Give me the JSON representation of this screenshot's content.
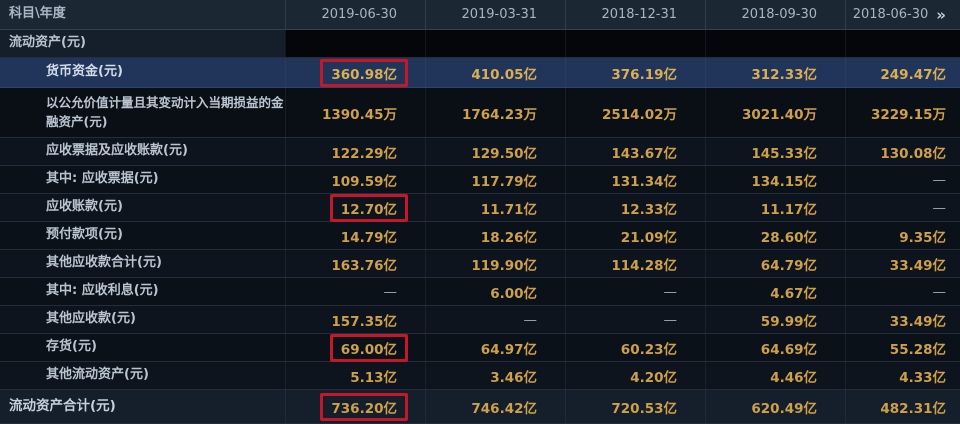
{
  "table": {
    "header": {
      "subject_label": "科目\\年度",
      "columns": [
        "2019-06-30",
        "2019-03-31",
        "2018-12-31",
        "2018-09-30",
        "2018-06-30"
      ],
      "more_icon": "»"
    },
    "colors": {
      "value_gold": "#cfa04a",
      "box_red": "#c2182a",
      "highlight_row_blue": "#21355a",
      "header_bg": "#1c2734"
    },
    "rows": [
      {
        "label": "流动资产(元)",
        "indent": 0,
        "type": "section",
        "values": [
          "",
          "",
          "",
          "",
          ""
        ],
        "boxed": []
      },
      {
        "label": "货币资金(元)",
        "indent": 1,
        "type": "highlight",
        "values": [
          "360.98亿",
          "410.05亿",
          "376.19亿",
          "312.33亿",
          "249.47亿"
        ],
        "boxed": [
          0
        ]
      },
      {
        "label": "以公允价值计量且其变动计入当期损益的金融资产(元)",
        "indent": 1,
        "type": "tall",
        "values": [
          "1390.45万",
          "1764.23万",
          "2514.02万",
          "3021.40万",
          "3229.15万"
        ],
        "boxed": []
      },
      {
        "label": "应收票据及应收账款(元)",
        "indent": 1,
        "type": "normal",
        "values": [
          "122.29亿",
          "129.50亿",
          "143.67亿",
          "145.33亿",
          "130.08亿"
        ],
        "boxed": []
      },
      {
        "label": "其中: 应收票据(元)",
        "indent": 1,
        "type": "normal",
        "values": [
          "109.59亿",
          "117.79亿",
          "131.34亿",
          "134.15亿",
          "—"
        ],
        "boxed": []
      },
      {
        "label": "应收账款(元)",
        "indent": 1,
        "type": "normal",
        "values": [
          "12.70亿",
          "11.71亿",
          "12.33亿",
          "11.17亿",
          "—"
        ],
        "boxed": [
          0
        ]
      },
      {
        "label": "预付款项(元)",
        "indent": 1,
        "type": "normal",
        "values": [
          "14.79亿",
          "18.26亿",
          "21.09亿",
          "28.60亿",
          "9.35亿"
        ],
        "boxed": []
      },
      {
        "label": "其他应收款合计(元)",
        "indent": 1,
        "type": "normal",
        "values": [
          "163.76亿",
          "119.90亿",
          "114.28亿",
          "64.79亿",
          "33.49亿"
        ],
        "boxed": []
      },
      {
        "label": "其中: 应收利息(元)",
        "indent": 1,
        "type": "normal",
        "values": [
          "—",
          "6.00亿",
          "—",
          "4.67亿",
          "—"
        ],
        "boxed": []
      },
      {
        "label": "其他应收款(元)",
        "indent": 1,
        "type": "normal",
        "values": [
          "157.35亿",
          "—",
          "—",
          "59.99亿",
          "33.49亿"
        ],
        "boxed": []
      },
      {
        "label": "存货(元)",
        "indent": 1,
        "type": "normal",
        "values": [
          "69.00亿",
          "64.97亿",
          "60.23亿",
          "64.69亿",
          "55.28亿"
        ],
        "boxed": [
          0
        ]
      },
      {
        "label": "其他流动资产(元)",
        "indent": 1,
        "type": "normal",
        "values": [
          "5.13亿",
          "3.46亿",
          "4.20亿",
          "4.46亿",
          "4.33亿"
        ],
        "boxed": []
      },
      {
        "label": "流动资产合计(元)",
        "indent": 0,
        "type": "total",
        "values": [
          "736.20亿",
          "746.42亿",
          "720.53亿",
          "620.49亿",
          "482.31亿"
        ],
        "boxed": [
          0
        ]
      }
    ]
  }
}
